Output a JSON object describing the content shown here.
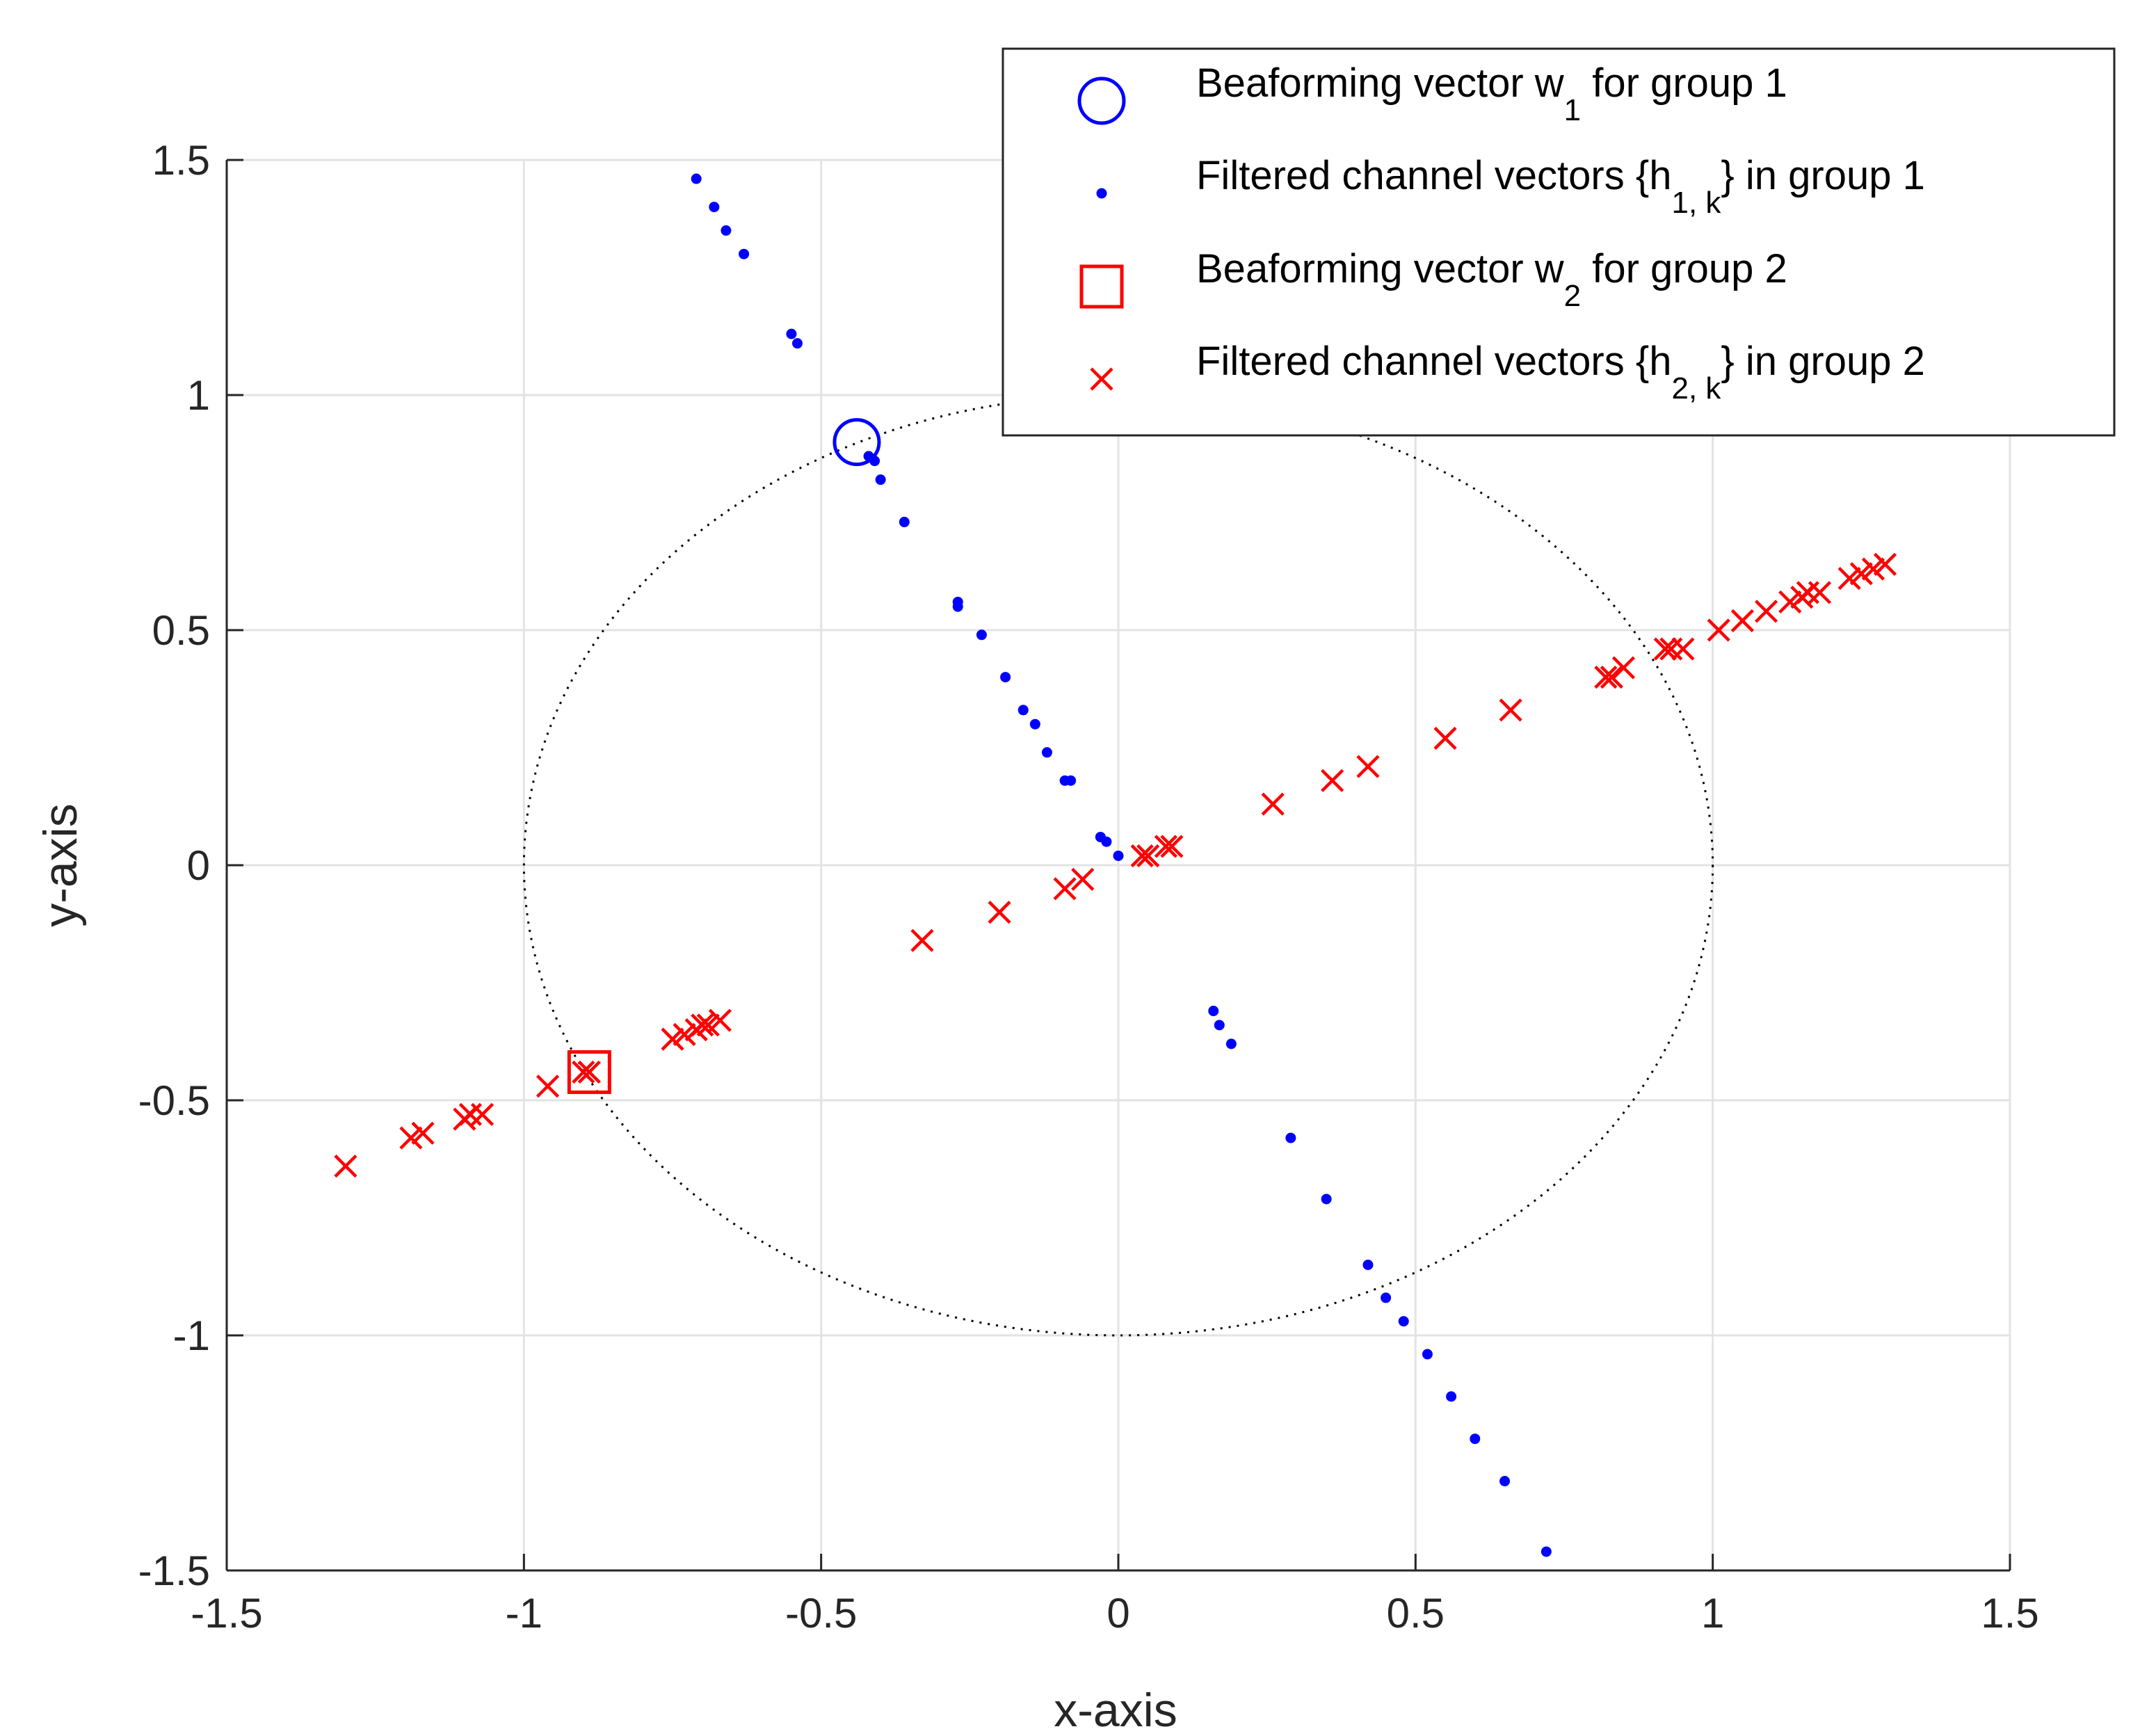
{
  "chart_data": {
    "type": "scatter",
    "title": "",
    "xlabel": "x-axis",
    "ylabel": "y-axis",
    "xlim": [
      -1.5,
      1.5
    ],
    "ylim": [
      -1.5,
      1.5
    ],
    "xticks": [
      -1.5,
      -1,
      -0.5,
      0,
      0.5,
      1,
      1.5
    ],
    "yticks": [
      -1.5,
      -1,
      -0.5,
      0,
      0.5,
      1,
      1.5
    ],
    "xtick_labels": [
      "-1.5",
      "-1",
      "-0.5",
      "0",
      "0.5",
      "1",
      "1.5"
    ],
    "ytick_labels": [
      "-1.5",
      "-1",
      "-0.5",
      "0",
      "0.5",
      "1",
      "1.5"
    ],
    "grid": true,
    "legend_position": "top-right",
    "unit_circle": {
      "center": [
        0,
        0
      ],
      "radius": 1,
      "style": "dotted",
      "color": "#000000"
    },
    "series": [
      {
        "name": "Beaforming vector w_1 for group 1",
        "legend": {
          "pre": "Beaforming vector w",
          "sub": "1",
          "post": "  for group 1"
        },
        "marker": "circle",
        "color": "#0000ff",
        "points": [
          [
            -0.44,
            0.9
          ]
        ]
      },
      {
        "name": "Filtered channel vectors {h_1,k} in group 1",
        "legend": {
          "pre": "Filtered channel vectors {h",
          "sub": "1, k",
          "post": "} in group 1"
        },
        "marker": "dot",
        "color": "#0000ff",
        "points": [
          [
            -0.71,
            1.46
          ],
          [
            -0.68,
            1.4
          ],
          [
            -0.66,
            1.35
          ],
          [
            -0.63,
            1.3
          ],
          [
            -0.55,
            1.13
          ],
          [
            -0.54,
            1.11
          ],
          [
            -0.42,
            0.87
          ],
          [
            -0.41,
            0.86
          ],
          [
            -0.4,
            0.82
          ],
          [
            -0.36,
            0.73
          ],
          [
            -0.27,
            0.56
          ],
          [
            -0.27,
            0.55
          ],
          [
            -0.23,
            0.49
          ],
          [
            -0.19,
            0.4
          ],
          [
            -0.16,
            0.33
          ],
          [
            -0.14,
            0.3
          ],
          [
            -0.12,
            0.24
          ],
          [
            -0.09,
            0.18
          ],
          [
            -0.08,
            0.18
          ],
          [
            -0.03,
            0.06
          ],
          [
            -0.02,
            0.05
          ],
          [
            0.0,
            0.02
          ],
          [
            0.16,
            -0.31
          ],
          [
            0.17,
            -0.34
          ],
          [
            0.19,
            -0.38
          ],
          [
            0.29,
            -0.58
          ],
          [
            0.35,
            -0.71
          ],
          [
            0.42,
            -0.85
          ],
          [
            0.45,
            -0.92
          ],
          [
            0.48,
            -0.97
          ],
          [
            0.52,
            -1.04
          ],
          [
            0.56,
            -1.13
          ],
          [
            0.6,
            -1.22
          ],
          [
            0.65,
            -1.31
          ],
          [
            0.72,
            -1.46
          ]
        ]
      },
      {
        "name": "Beaforming vector w_2 for group 2",
        "legend": {
          "pre": "Beaforming vector w",
          "sub": "2",
          "post": " for group 2"
        },
        "marker": "square",
        "color": "#ff0000",
        "points": [
          [
            -0.89,
            -0.44
          ]
        ]
      },
      {
        "name": "Filtered channel vectors {h_2,k} in group 2",
        "legend": {
          "pre": "Filtered channel vectors {h",
          "sub": "2, k",
          "post": "} in group 2"
        },
        "marker": "x",
        "color": "#ff0000",
        "points": [
          [
            -1.3,
            -0.64
          ],
          [
            -1.19,
            -0.58
          ],
          [
            -1.17,
            -0.57
          ],
          [
            -1.1,
            -0.54
          ],
          [
            -1.09,
            -0.53
          ],
          [
            -1.07,
            -0.53
          ],
          [
            -0.96,
            -0.47
          ],
          [
            -0.9,
            -0.44
          ],
          [
            -0.89,
            -0.44
          ],
          [
            -0.75,
            -0.37
          ],
          [
            -0.73,
            -0.36
          ],
          [
            -0.71,
            -0.35
          ],
          [
            -0.7,
            -0.34
          ],
          [
            -0.69,
            -0.34
          ],
          [
            -0.67,
            -0.33
          ],
          [
            -0.33,
            -0.16
          ],
          [
            -0.2,
            -0.1
          ],
          [
            -0.09,
            -0.05
          ],
          [
            -0.06,
            -0.03
          ],
          [
            0.04,
            0.02
          ],
          [
            0.05,
            0.02
          ],
          [
            0.08,
            0.04
          ],
          [
            0.09,
            0.04
          ],
          [
            0.26,
            0.13
          ],
          [
            0.36,
            0.18
          ],
          [
            0.42,
            0.21
          ],
          [
            0.55,
            0.27
          ],
          [
            0.66,
            0.33
          ],
          [
            0.82,
            0.4
          ],
          [
            0.83,
            0.4
          ],
          [
            0.85,
            0.42
          ],
          [
            0.92,
            0.46
          ],
          [
            0.93,
            0.46
          ],
          [
            0.95,
            0.46
          ],
          [
            1.01,
            0.5
          ],
          [
            1.05,
            0.52
          ],
          [
            1.09,
            0.54
          ],
          [
            1.13,
            0.56
          ],
          [
            1.15,
            0.57
          ],
          [
            1.16,
            0.58
          ],
          [
            1.18,
            0.58
          ],
          [
            1.23,
            0.61
          ],
          [
            1.25,
            0.62
          ],
          [
            1.27,
            0.63
          ],
          [
            1.29,
            0.64
          ]
        ]
      }
    ]
  }
}
